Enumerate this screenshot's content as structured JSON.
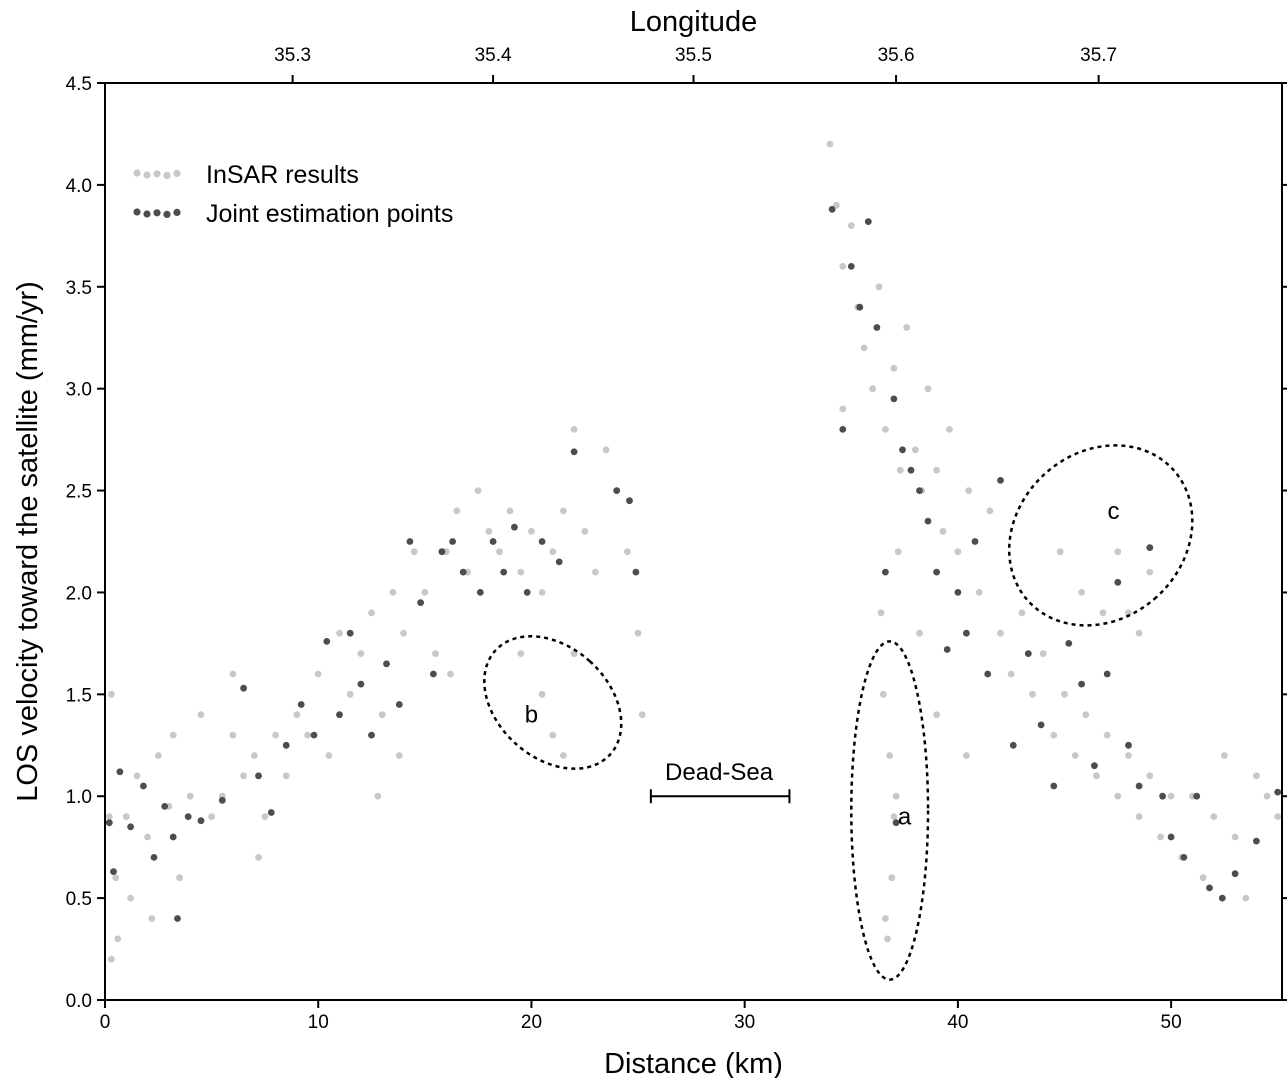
{
  "chart_data": {
    "type": "scatter",
    "xlabel": "Distance (km)",
    "ylabel": "LOS velocity toward the satellite (mm/yr)",
    "top_xlabel": "Longitude",
    "xlim": [
      0,
      55.2
    ],
    "ylim": [
      0,
      4.5
    ],
    "x_ticks": [
      0,
      10,
      20,
      30,
      40,
      50
    ],
    "y_ticks": [
      "0.0",
      "0.5",
      "1.0",
      "1.5",
      "2.0",
      "2.5",
      "3.0",
      "3.5",
      "4.0",
      "4.5"
    ],
    "top_ticks": [
      {
        "km": 8.8,
        "label": "35.3"
      },
      {
        "km": 18.2,
        "label": "35.4"
      },
      {
        "km": 27.6,
        "label": "35.5"
      },
      {
        "km": 37.1,
        "label": "35.6"
      },
      {
        "km": 46.6,
        "label": "35.7"
      }
    ],
    "grid": false,
    "legend_position": "top-left",
    "series": [
      {
        "name": "InSAR results",
        "color": "#c8c8c8",
        "points": [
          [
            0.3,
            1.5
          ],
          [
            0.2,
            0.9
          ],
          [
            0.5,
            0.6
          ],
          [
            1,
            0.9
          ],
          [
            1.5,
            1.1
          ],
          [
            2,
            0.8
          ],
          [
            2.5,
            1.2
          ],
          [
            3,
            0.95
          ],
          [
            3.5,
            0.6
          ],
          [
            4,
            1.0
          ],
          [
            4.5,
            1.4
          ],
          [
            5,
            0.9
          ],
          [
            5.5,
            1.0
          ],
          [
            6,
            1.3
          ],
          [
            6.5,
            1.1
          ],
          [
            7,
            1.2
          ],
          [
            7.5,
            0.9
          ],
          [
            8,
            1.3
          ],
          [
            8.5,
            1.1
          ],
          [
            9,
            1.4
          ],
          [
            9.5,
            1.3
          ],
          [
            10,
            1.6
          ],
          [
            10.5,
            1.2
          ],
          [
            11,
            1.8
          ],
          [
            11.5,
            1.5
          ],
          [
            12,
            1.7
          ],
          [
            12.5,
            1.9
          ],
          [
            13,
            1.4
          ],
          [
            13.5,
            2.0
          ],
          [
            14,
            1.8
          ],
          [
            14.5,
            2.2
          ],
          [
            15,
            2.0
          ],
          [
            15.5,
            1.7
          ],
          [
            16,
            2.2
          ],
          [
            16.5,
            2.4
          ],
          [
            17,
            2.1
          ],
          [
            17.5,
            2.5
          ],
          [
            18,
            2.3
          ],
          [
            18.5,
            2.2
          ],
          [
            19,
            2.4
          ],
          [
            19.5,
            2.1
          ],
          [
            20,
            2.3
          ],
          [
            20.5,
            2.0
          ],
          [
            21,
            2.2
          ],
          [
            21.5,
            2.4
          ],
          [
            22,
            2.8
          ],
          [
            22.5,
            2.3
          ],
          [
            23,
            2.1
          ],
          [
            23.5,
            2.7
          ],
          [
            24,
            2.5
          ],
          [
            24.5,
            2.2
          ],
          [
            25,
            1.8
          ],
          [
            25.2,
            1.4
          ],
          [
            19.5,
            1.7
          ],
          [
            20.5,
            1.5
          ],
          [
            21,
            1.3
          ],
          [
            21.5,
            1.2
          ],
          [
            22,
            1.7
          ],
          [
            0.3,
            0.2
          ],
          [
            0.6,
            0.3
          ],
          [
            1.2,
            0.5
          ],
          [
            2.2,
            0.4
          ],
          [
            3.2,
            1.3
          ],
          [
            6,
            1.6
          ],
          [
            7.2,
            0.7
          ],
          [
            12.8,
            1.0
          ],
          [
            13.8,
            1.2
          ],
          [
            16.2,
            1.6
          ],
          [
            34,
            4.2
          ],
          [
            34.3,
            3.9
          ],
          [
            34.6,
            3.6
          ],
          [
            35,
            3.8
          ],
          [
            35.3,
            3.4
          ],
          [
            35.6,
            3.2
          ],
          [
            36,
            3.0
          ],
          [
            36.3,
            3.5
          ],
          [
            36.6,
            2.8
          ],
          [
            37,
            3.1
          ],
          [
            37.3,
            2.6
          ],
          [
            37.6,
            3.3
          ],
          [
            38,
            2.7
          ],
          [
            38.3,
            2.5
          ],
          [
            38.6,
            3.0
          ],
          [
            39,
            2.6
          ],
          [
            39.3,
            2.3
          ],
          [
            39.6,
            2.8
          ],
          [
            40,
            2.2
          ],
          [
            40.5,
            2.5
          ],
          [
            41,
            2.0
          ],
          [
            41.5,
            2.4
          ],
          [
            42,
            1.8
          ],
          [
            42.5,
            1.6
          ],
          [
            43,
            1.9
          ],
          [
            43.5,
            1.5
          ],
          [
            44,
            1.7
          ],
          [
            44.5,
            1.3
          ],
          [
            45,
            1.5
          ],
          [
            45.5,
            1.2
          ],
          [
            46,
            1.4
          ],
          [
            46.5,
            1.1
          ],
          [
            47,
            1.3
          ],
          [
            47.5,
            1.0
          ],
          [
            48,
            1.2
          ],
          [
            48.5,
            0.9
          ],
          [
            49,
            1.1
          ],
          [
            49.5,
            0.8
          ],
          [
            50,
            1.0
          ],
          [
            50.5,
            0.7
          ],
          [
            51,
            1.0
          ],
          [
            51.5,
            0.6
          ],
          [
            52,
            0.9
          ],
          [
            52.5,
            1.2
          ],
          [
            53,
            0.8
          ],
          [
            53.5,
            0.5
          ],
          [
            54,
            1.1
          ],
          [
            54.5,
            1.0
          ],
          [
            55,
            0.9
          ],
          [
            34.6,
            2.9
          ],
          [
            36.4,
            1.9
          ],
          [
            37.2,
            2.2
          ],
          [
            38.2,
            1.8
          ],
          [
            39,
            1.4
          ],
          [
            40.4,
            1.2
          ],
          [
            36.5,
            1.5
          ],
          [
            36.8,
            1.2
          ],
          [
            37,
            0.9
          ],
          [
            36.9,
            0.6
          ],
          [
            36.6,
            0.4
          ],
          [
            37.1,
            1.0
          ],
          [
            36.7,
            0.3
          ],
          [
            44.8,
            2.2
          ],
          [
            45.8,
            2.0
          ],
          [
            46.8,
            1.9
          ],
          [
            47.5,
            2.2
          ],
          [
            48,
            1.9
          ],
          [
            48.5,
            1.8
          ],
          [
            49,
            2.1
          ]
        ]
      },
      {
        "name": "Joint estimation points",
        "color": "#4d4d4d",
        "points": [
          [
            0.2,
            0.87
          ],
          [
            0.4,
            0.63
          ],
          [
            0.7,
            1.12
          ],
          [
            1.2,
            0.85
          ],
          [
            1.8,
            1.05
          ],
          [
            2.3,
            0.7
          ],
          [
            2.8,
            0.95
          ],
          [
            3.2,
            0.8
          ],
          [
            3.4,
            0.4
          ],
          [
            3.9,
            0.9
          ],
          [
            4.5,
            0.88
          ],
          [
            5.5,
            0.98
          ],
          [
            6.5,
            1.53
          ],
          [
            7.2,
            1.1
          ],
          [
            7.8,
            0.92
          ],
          [
            8.5,
            1.25
          ],
          [
            9.2,
            1.45
          ],
          [
            9.8,
            1.3
          ],
          [
            10.4,
            1.76
          ],
          [
            11,
            1.4
          ],
          [
            11.5,
            1.8
          ],
          [
            12,
            1.55
          ],
          [
            12.5,
            1.3
          ],
          [
            13.2,
            1.65
          ],
          [
            13.8,
            1.45
          ],
          [
            14.3,
            2.25
          ],
          [
            14.8,
            1.95
          ],
          [
            15.4,
            1.6
          ],
          [
            15.8,
            2.2
          ],
          [
            16.3,
            2.25
          ],
          [
            16.8,
            2.1
          ],
          [
            17.6,
            2.0
          ],
          [
            18.2,
            2.25
          ],
          [
            18.7,
            2.1
          ],
          [
            19.2,
            2.32
          ],
          [
            19.8,
            2.0
          ],
          [
            20.5,
            2.25
          ],
          [
            21.3,
            2.15
          ],
          [
            22.0,
            2.69
          ],
          [
            24.0,
            2.5
          ],
          [
            24.6,
            2.45
          ],
          [
            24.9,
            2.1
          ],
          [
            34.1,
            3.88
          ],
          [
            34.6,
            2.8
          ],
          [
            35.0,
            3.6
          ],
          [
            35.4,
            3.4
          ],
          [
            35.8,
            3.82
          ],
          [
            36.2,
            3.3
          ],
          [
            36.6,
            2.1
          ],
          [
            37.0,
            2.95
          ],
          [
            37.4,
            2.7
          ],
          [
            37.8,
            2.6
          ],
          [
            38.2,
            2.5
          ],
          [
            38.6,
            2.35
          ],
          [
            39.0,
            2.1
          ],
          [
            39.5,
            1.72
          ],
          [
            40.0,
            2.0
          ],
          [
            40.4,
            1.8
          ],
          [
            40.8,
            2.25
          ],
          [
            41.4,
            1.6
          ],
          [
            42.0,
            2.55
          ],
          [
            42.6,
            1.25
          ],
          [
            43.3,
            1.7
          ],
          [
            43.9,
            1.35
          ],
          [
            44.5,
            1.05
          ],
          [
            45.2,
            1.75
          ],
          [
            45.8,
            1.55
          ],
          [
            46.4,
            1.15
          ],
          [
            47.0,
            1.6
          ],
          [
            47.5,
            2.05
          ],
          [
            48.0,
            1.25
          ],
          [
            48.5,
            1.05
          ],
          [
            49.0,
            2.22
          ],
          [
            49.6,
            1.0
          ],
          [
            50.0,
            0.8
          ],
          [
            50.6,
            0.7
          ],
          [
            51.2,
            1.0
          ],
          [
            51.8,
            0.55
          ],
          [
            52.4,
            0.5
          ],
          [
            53.0,
            0.62
          ],
          [
            54.0,
            0.78
          ],
          [
            55.0,
            1.02
          ],
          [
            37.1,
            0.87
          ]
        ]
      }
    ],
    "annotations": [
      {
        "text": "a",
        "x": 37.5,
        "y": 0.9
      },
      {
        "text": "b",
        "x": 20.0,
        "y": 1.4
      },
      {
        "text": "c",
        "x": 47.3,
        "y": 2.4
      },
      {
        "text": "Dead-Sea",
        "x": 28.8,
        "y": 1.12
      }
    ],
    "ellipses": [
      {
        "label": "a",
        "cx": 36.8,
        "cy": 0.93,
        "rx_km": 1.8,
        "ry_val": 0.83,
        "rotate_deg": 0
      },
      {
        "label": "b",
        "cx": 21.0,
        "cy": 1.46,
        "rx_km": 2.6,
        "ry_val": 0.38,
        "rotate_deg": -48
      },
      {
        "label": "c",
        "cx": 46.7,
        "cy": 2.28,
        "rx_km": 3.9,
        "ry_val": 0.48,
        "rotate_deg": 48
      }
    ],
    "range_bar": {
      "label": "Dead-Sea",
      "x_start": 25.6,
      "x_end": 32.1,
      "y": 1.0
    }
  }
}
